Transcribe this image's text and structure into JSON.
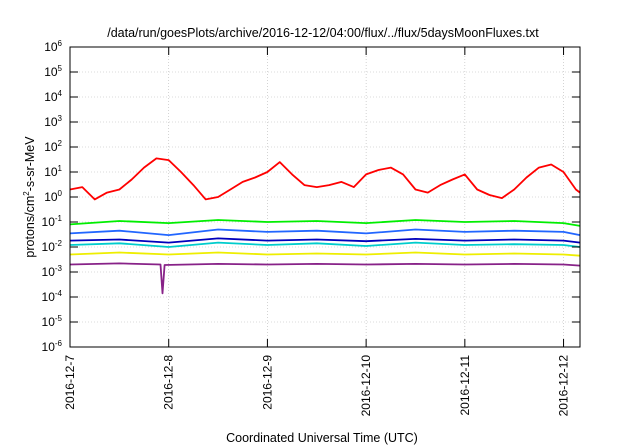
{
  "chart_data": {
    "type": "line",
    "title": "/data/run/goesPlots/archive/2016-12-12/04:00/flux/../flux/5daysMoonFluxes.txt",
    "xlabel": "Coordinated Universal Time (UTC)",
    "ylabel": "protons/cm²-s-sr-MeV",
    "ylabel_parts": [
      "protons/cm",
      "2",
      "-s-sr-MeV"
    ],
    "yscale": "log",
    "ylim": [
      1e-06,
      1000000.0
    ],
    "y_ticks": [
      {
        "base": "10",
        "exp": "6"
      },
      {
        "base": "10",
        "exp": "5"
      },
      {
        "base": "10",
        "exp": "4"
      },
      {
        "base": "10",
        "exp": "3"
      },
      {
        "base": "10",
        "exp": "2"
      },
      {
        "base": "10",
        "exp": "1"
      },
      {
        "base": "10",
        "exp": "0"
      },
      {
        "base": "10",
        "exp": "-1"
      },
      {
        "base": "10",
        "exp": "-2"
      },
      {
        "base": "10",
        "exp": "-3"
      },
      {
        "base": "10",
        "exp": "-4"
      },
      {
        "base": "10",
        "exp": "-5"
      },
      {
        "base": "10",
        "exp": "-6"
      }
    ],
    "x_ticks": [
      "2016-12-7",
      "2016-12-8",
      "2016-12-9",
      "2016-12-10",
      "2016-12-11",
      "2016-12-12"
    ],
    "xlim": [
      "2016-12-07T00:00",
      "2016-12-12T04:00"
    ],
    "grid": true,
    "series": [
      {
        "color": "#ff0000",
        "x": [
          "2016-12-07T00:00",
          "2016-12-07T03:00",
          "2016-12-07T06:00",
          "2016-12-07T09:00",
          "2016-12-07T12:00",
          "2016-12-07T15:00",
          "2016-12-07T18:00",
          "2016-12-07T21:00",
          "2016-12-08T00:00",
          "2016-12-08T03:00",
          "2016-12-08T06:00",
          "2016-12-08T09:00",
          "2016-12-08T12:00",
          "2016-12-08T15:00",
          "2016-12-08T18:00",
          "2016-12-08T21:00",
          "2016-12-09T00:00",
          "2016-12-09T03:00",
          "2016-12-09T06:00",
          "2016-12-09T09:00",
          "2016-12-09T12:00",
          "2016-12-09T15:00",
          "2016-12-09T18:00",
          "2016-12-09T21:00",
          "2016-12-10T00:00",
          "2016-12-10T03:00",
          "2016-12-10T06:00",
          "2016-12-10T09:00",
          "2016-12-10T12:00",
          "2016-12-10T15:00",
          "2016-12-10T18:00",
          "2016-12-10T21:00",
          "2016-12-11T00:00",
          "2016-12-11T03:00",
          "2016-12-11T06:00",
          "2016-12-11T09:00",
          "2016-12-11T12:00",
          "2016-12-11T15:00",
          "2016-12-11T18:00",
          "2016-12-11T21:00",
          "2016-12-12T00:00",
          "2016-12-12T03:00",
          "2016-12-12T04:00"
        ],
        "values": [
          2,
          2.5,
          0.8,
          1.5,
          2,
          5,
          15,
          35,
          30,
          10,
          3,
          0.8,
          1,
          2,
          4,
          6,
          10,
          25,
          8,
          3,
          2.5,
          3,
          4,
          2.5,
          8,
          12,
          15,
          8,
          2,
          1.5,
          3,
          5,
          8,
          2,
          1.2,
          0.9,
          2,
          6,
          15,
          20,
          10,
          2,
          1.5
        ]
      },
      {
        "color": "#00ee00",
        "x": [
          "2016-12-07T00:00",
          "2016-12-07T12:00",
          "2016-12-08T00:00",
          "2016-12-08T12:00",
          "2016-12-09T00:00",
          "2016-12-09T12:00",
          "2016-12-10T00:00",
          "2016-12-10T12:00",
          "2016-12-11T00:00",
          "2016-12-11T12:00",
          "2016-12-12T00:00",
          "2016-12-12T04:00"
        ],
        "values": [
          0.08,
          0.11,
          0.09,
          0.12,
          0.1,
          0.11,
          0.09,
          0.12,
          0.1,
          0.11,
          0.09,
          0.07
        ]
      },
      {
        "color": "#2266ff",
        "x": [
          "2016-12-07T00:00",
          "2016-12-07T12:00",
          "2016-12-08T00:00",
          "2016-12-08T12:00",
          "2016-12-09T00:00",
          "2016-12-09T12:00",
          "2016-12-10T00:00",
          "2016-12-10T12:00",
          "2016-12-11T00:00",
          "2016-12-11T12:00",
          "2016-12-12T00:00",
          "2016-12-12T04:00"
        ],
        "values": [
          0.035,
          0.045,
          0.03,
          0.05,
          0.04,
          0.045,
          0.035,
          0.05,
          0.04,
          0.045,
          0.04,
          0.03
        ]
      },
      {
        "color": "#00cccc",
        "x": [
          "2016-12-07T00:00",
          "2016-12-07T12:00",
          "2016-12-08T00:00",
          "2016-12-08T12:00",
          "2016-12-09T00:00",
          "2016-12-09T12:00",
          "2016-12-10T00:00",
          "2016-12-10T12:00",
          "2016-12-11T00:00",
          "2016-12-11T12:00",
          "2016-12-12T00:00",
          "2016-12-12T04:00"
        ],
        "values": [
          0.012,
          0.014,
          0.01,
          0.015,
          0.012,
          0.014,
          0.011,
          0.015,
          0.012,
          0.013,
          0.012,
          0.01
        ]
      },
      {
        "color": "#0000bb",
        "x": [
          "2016-12-07T00:00",
          "2016-12-07T12:00",
          "2016-12-08T00:00",
          "2016-12-08T12:00",
          "2016-12-09T00:00",
          "2016-12-09T12:00",
          "2016-12-10T00:00",
          "2016-12-10T12:00",
          "2016-12-11T00:00",
          "2016-12-11T12:00",
          "2016-12-12T00:00",
          "2016-12-12T04:00"
        ],
        "values": [
          0.018,
          0.02,
          0.015,
          0.022,
          0.018,
          0.02,
          0.017,
          0.021,
          0.018,
          0.02,
          0.018,
          0.015
        ]
      },
      {
        "color": "#eeee00",
        "x": [
          "2016-12-07T00:00",
          "2016-12-07T12:00",
          "2016-12-08T00:00",
          "2016-12-08T12:00",
          "2016-12-09T00:00",
          "2016-12-09T12:00",
          "2016-12-10T00:00",
          "2016-12-10T12:00",
          "2016-12-11T00:00",
          "2016-12-11T12:00",
          "2016-12-12T00:00",
          "2016-12-12T04:00"
        ],
        "values": [
          0.005,
          0.006,
          0.005,
          0.006,
          0.005,
          0.0055,
          0.005,
          0.006,
          0.005,
          0.0055,
          0.005,
          0.0045
        ]
      },
      {
        "color": "#882288",
        "x": [
          "2016-12-07T00:00",
          "2016-12-07T12:00",
          "2016-12-07T22:00",
          "2016-12-07T22:30",
          "2016-12-07T23:00",
          "2016-12-08T12:00",
          "2016-12-09T00:00",
          "2016-12-09T12:00",
          "2016-12-10T00:00",
          "2016-12-10T12:00",
          "2016-12-11T00:00",
          "2016-12-11T12:00",
          "2016-12-12T00:00",
          "2016-12-12T04:00"
        ],
        "values": [
          0.002,
          0.0022,
          0.002,
          0.00014,
          0.0019,
          0.0021,
          0.002,
          0.0021,
          0.002,
          0.0021,
          0.002,
          0.0021,
          0.002,
          0.0018
        ]
      }
    ]
  }
}
